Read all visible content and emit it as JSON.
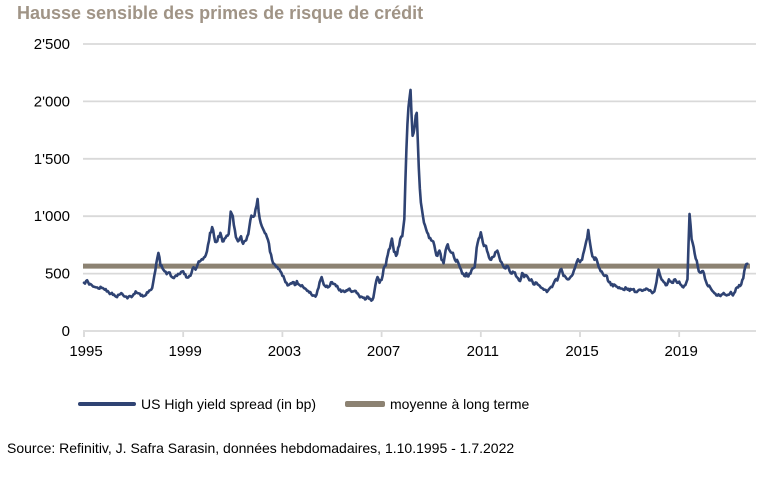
{
  "header": {
    "title": "Hausse sensible des primes de risque de crédit"
  },
  "footer": {
    "source": "Source: Refinitiv, J. Safra Sarasin, données hebdomadaires, 1.10.1995 - 1.7.2022"
  },
  "colors": {
    "title": "#A09486",
    "series": "#2F4373",
    "average": "#8C8272",
    "grid": "#D9D9D9",
    "text": "#000000",
    "background": "#FFFFFF"
  },
  "legend": {
    "series_label": "US High yield spread (in bp)",
    "average_label": "moyenne à long terme"
  },
  "chart_data": {
    "type": "line",
    "title": "Hausse sensible des primes de risque de crédit",
    "xlabel": "",
    "ylabel": "",
    "grid": true,
    "legend_position": "bottom",
    "ylim": [
      0,
      2500
    ],
    "y_tick_step": 500,
    "y_tick_labels": [
      "0",
      "500",
      "1'000",
      "1'500",
      "2'000",
      "2'500"
    ],
    "x_tick_labels": [
      "1995",
      "1999",
      "2003",
      "2007",
      "2011",
      "2015",
      "2019"
    ],
    "x_tick_interval_years": 4,
    "x_range": {
      "start": "1995-10",
      "end": "2022-07"
    },
    "average_long_term": 565,
    "series": [
      {
        "name": "US High yield spread (in bp)",
        "unit": "bp",
        "start_year": 1995,
        "start_month": 10,
        "monthly_values": [
          420,
          435,
          425,
          410,
          395,
          385,
          380,
          370,
          385,
          375,
          360,
          345,
          335,
          325,
          315,
          305,
          295,
          315,
          330,
          310,
          300,
          285,
          305,
          295,
          320,
          345,
          330,
          325,
          315,
          305,
          315,
          335,
          355,
          375,
          480,
          590,
          680,
          570,
          545,
          520,
          495,
          510,
          480,
          465,
          475,
          480,
          495,
          515,
          520,
          495,
          465,
          480,
          505,
          555,
          535,
          580,
          605,
          625,
          640,
          665,
          750,
          855,
          905,
          820,
          775,
          825,
          855,
          780,
          805,
          830,
          845,
          1040,
          1000,
          880,
          800,
          790,
          825,
          760,
          785,
          825,
          905,
          1005,
          995,
          1060,
          1150,
          980,
          915,
          875,
          845,
          795,
          690,
          620,
          585,
          560,
          540,
          520,
          480,
          450,
          420,
          400,
          415,
          425,
          400,
          435,
          405,
          390,
          385,
          370,
          350,
          335,
          320,
          310,
          300,
          355,
          425,
          470,
          405,
          385,
          380,
          395,
          425,
          410,
          390,
          370,
          360,
          350,
          340,
          355,
          365,
          350,
          345,
          350,
          330,
          310,
          300,
          290,
          275,
          300,
          280,
          265,
          290,
          400,
          470,
          420,
          445,
          545,
          570,
          665,
          720,
          805,
          690,
          655,
          725,
          800,
          825,
          975,
          1580,
          1950,
          2100,
          1700,
          1780,
          1900,
          1420,
          1120,
          1000,
          920,
          860,
          810,
          790,
          780,
          700,
          655,
          700,
          620,
          590,
          705,
          755,
          700,
          680,
          645,
          605,
          600,
          550,
          500,
          480,
          505,
          475,
          500,
          545,
          555,
          725,
          805,
          860,
          770,
          745,
          700,
          640,
          620,
          645,
          685,
          700,
          640,
          600,
          560,
          545,
          565,
          520,
          500,
          510,
          480,
          460,
          435,
          505,
          470,
          485,
          460,
          440,
          430,
          405,
          420,
          400,
          380,
          370,
          360,
          340,
          365,
          385,
          405,
          445,
          440,
          505,
          540,
          480,
          470,
          450,
          460,
          480,
          525,
          575,
          625,
          600,
          620,
          700,
          780,
          880,
          750,
          650,
          620,
          625,
          560,
          520,
          500,
          480,
          480,
          425,
          400,
          390,
          400,
          385,
          380,
          370,
          360,
          380,
          360,
          350,
          360,
          365,
          340,
          350,
          360,
          350,
          360,
          370,
          360,
          355,
          330,
          345,
          425,
          535,
          470,
          440,
          420,
          400,
          450,
          430,
          420,
          450,
          420,
          430,
          400,
          380,
          400,
          450,
          1020,
          800,
          730,
          630,
          560,
          510,
          520,
          500,
          430,
          390,
          380,
          350,
          330,
          310,
          320,
          305,
          320,
          320,
          310,
          315,
          340,
          310,
          340,
          380,
          400,
          405,
          460,
          560,
          585
        ]
      },
      {
        "name": "moyenne à long terme",
        "value": 565
      }
    ]
  }
}
